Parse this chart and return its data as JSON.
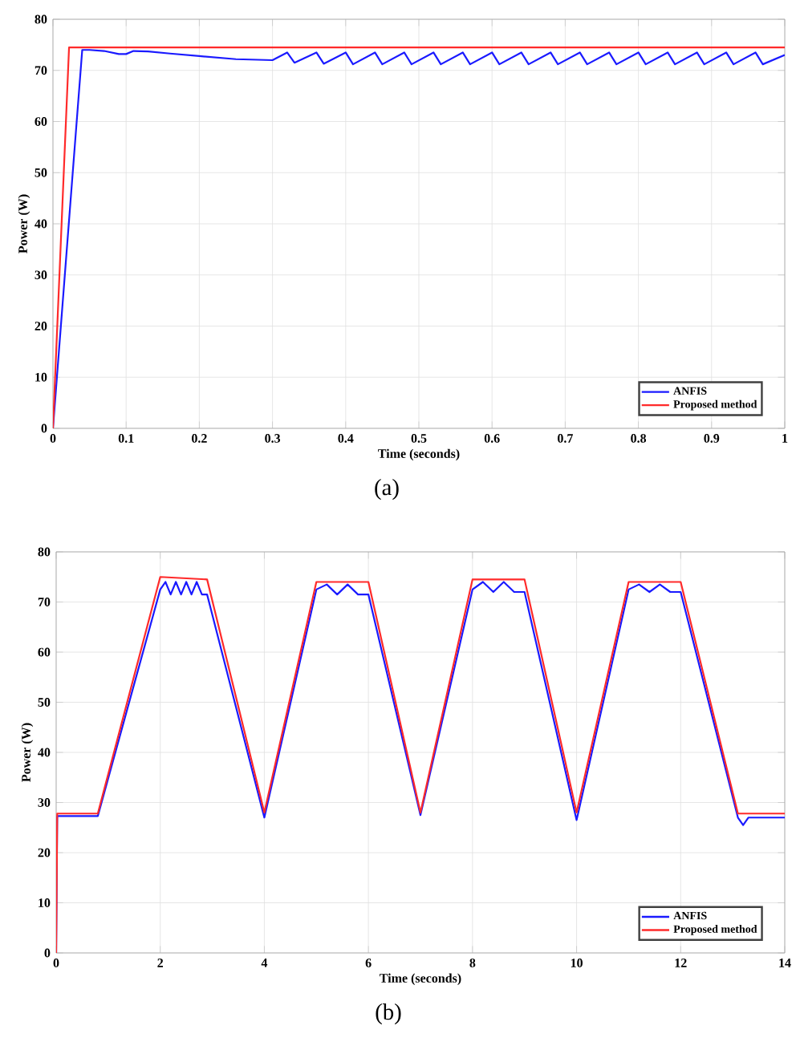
{
  "chart_data": [
    {
      "type": "line",
      "xlabel": "Time (seconds)",
      "ylabel": "Power (W)",
      "annotations": [
        "(a)"
      ],
      "xlim": [
        0,
        1
      ],
      "ylim": [
        0,
        80
      ],
      "xticks": [
        0,
        0.1,
        0.2,
        0.3,
        0.4,
        0.5,
        0.6,
        0.7,
        0.8,
        0.9,
        1
      ],
      "yticks": [
        0,
        10,
        20,
        30,
        40,
        50,
        60,
        70,
        80
      ],
      "grid": true,
      "legend": "bottom right",
      "marker": "none",
      "line_style": "solid",
      "series": [
        {
          "name": "ANFIS",
          "color": "#1a1aff",
          "x": [
            0,
            0.04,
            0.05,
            0.07,
            0.09,
            0.1,
            0.11,
            0.13,
            0.16,
            0.2,
            0.25,
            0.3,
            0.32,
            0.33,
            0.36,
            0.37,
            0.4,
            0.41,
            0.44,
            0.45,
            0.48,
            0.49,
            0.52,
            0.53,
            0.56,
            0.57,
            0.6,
            0.61,
            0.64,
            0.65,
            0.68,
            0.69,
            0.72,
            0.73,
            0.76,
            0.77,
            0.8,
            0.81,
            0.84,
            0.85,
            0.88,
            0.89,
            0.92,
            0.93,
            0.96,
            0.97,
            1
          ],
          "values": [
            0,
            74,
            74,
            73.8,
            73.2,
            73.2,
            73.8,
            73.7,
            73.3,
            72.8,
            72.2,
            72,
            73.5,
            71.5,
            73.5,
            71.3,
            73.5,
            71.2,
            73.5,
            71.2,
            73.5,
            71.2,
            73.5,
            71.2,
            73.5,
            71.2,
            73.5,
            71.2,
            73.5,
            71.2,
            73.5,
            71.2,
            73.5,
            71.2,
            73.5,
            71.2,
            73.5,
            71.2,
            73.5,
            71.2,
            73.5,
            71.2,
            73.5,
            71.2,
            73.5,
            71.2,
            73
          ]
        },
        {
          "name": "Proposed method",
          "color": "#ff2a2a",
          "x": [
            0,
            0.022,
            1
          ],
          "values": [
            0,
            74.5,
            74.5
          ]
        }
      ]
    },
    {
      "type": "line",
      "xlabel": "Time (seconds)",
      "ylabel": "Power (W)",
      "annotations": [
        "(b)"
      ],
      "xlim": [
        0,
        14
      ],
      "ylim": [
        0,
        80
      ],
      "xticks": [
        0,
        2,
        4,
        6,
        8,
        10,
        12,
        14
      ],
      "yticks": [
        0,
        10,
        20,
        30,
        40,
        50,
        60,
        70,
        80
      ],
      "grid": true,
      "legend": "bottom right",
      "marker": "none",
      "line_style": "solid",
      "series": [
        {
          "name": "ANFIS",
          "color": "#1a1aff",
          "x": [
            0,
            0.02,
            0.8,
            2,
            2.1,
            2.2,
            2.3,
            2.4,
            2.5,
            2.6,
            2.7,
            2.8,
            2.9,
            4,
            5,
            5.2,
            5.4,
            5.6,
            5.8,
            6,
            7,
            8,
            8.2,
            8.4,
            8.6,
            8.8,
            9,
            10,
            11,
            11.2,
            11.4,
            11.6,
            11.8,
            12,
            13.1,
            13.2,
            13.3,
            14
          ],
          "values": [
            0,
            27.3,
            27.3,
            72.5,
            74,
            71.5,
            74,
            71.5,
            74,
            71.5,
            74,
            71.5,
            71.5,
            27,
            72.5,
            73.5,
            71.5,
            73.5,
            71.5,
            71.5,
            27.5,
            72.5,
            74,
            72,
            74,
            72,
            72,
            26.5,
            72.5,
            73.5,
            72,
            73.5,
            72,
            72,
            27,
            25.5,
            27,
            27
          ]
        },
        {
          "name": "Proposed method",
          "color": "#ff2a2a",
          "x": [
            0,
            0.02,
            0.8,
            2,
            2.9,
            4,
            5,
            6,
            7,
            8,
            9,
            10,
            11,
            12,
            13.1,
            14
          ],
          "values": [
            0,
            27.8,
            27.8,
            75,
            74.5,
            28,
            74,
            74,
            28,
            74.5,
            74.5,
            28,
            74,
            74,
            27.8,
            27.8
          ]
        }
      ]
    }
  ]
}
